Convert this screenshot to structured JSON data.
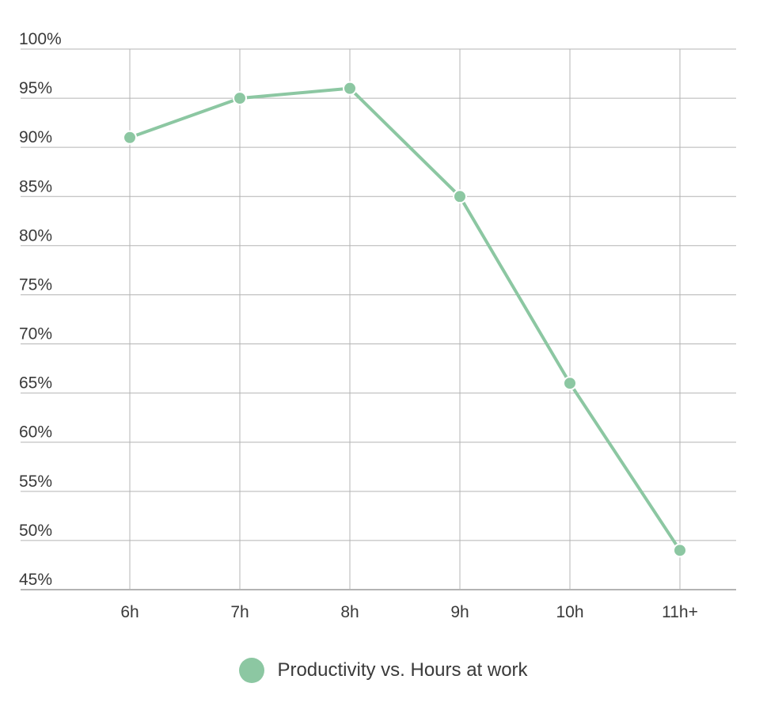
{
  "chart_data": {
    "type": "line",
    "categories": [
      "6h",
      "7h",
      "8h",
      "9h",
      "10h",
      "11h+"
    ],
    "series": [
      {
        "name": "Productivity vs. Hours at work",
        "values": [
          91,
          95,
          96,
          85,
          66,
          49
        ],
        "color": "#8cc7a2"
      }
    ],
    "yticks": [
      "45%",
      "50%",
      "55%",
      "60%",
      "65%",
      "70%",
      "75%",
      "80%",
      "85%",
      "90%",
      "95%",
      "100%"
    ],
    "ylim": [
      45,
      100
    ],
    "ytick_step": 5,
    "grid": true,
    "legend_position": "bottom-center",
    "title": "",
    "xlabel": "",
    "ylabel": ""
  }
}
